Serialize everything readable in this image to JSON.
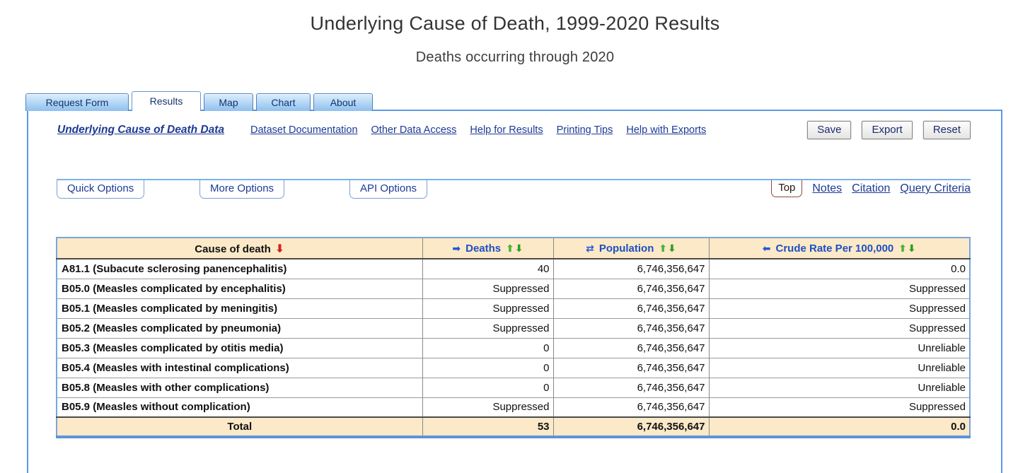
{
  "page": {
    "title": "Underlying Cause of Death, 1999-2020 Results",
    "subtitle": "Deaths occurring through 2020"
  },
  "tabs": [
    {
      "label": "Request Form",
      "active": false
    },
    {
      "label": "Results",
      "active": true
    },
    {
      "label": "Map",
      "active": false
    },
    {
      "label": "Chart",
      "active": false
    },
    {
      "label": "About",
      "active": false
    }
  ],
  "toolbar": {
    "dataset_link": "Underlying Cause of Death Data",
    "links": [
      "Dataset Documentation",
      "Other Data Access",
      "Help for Results",
      "Printing Tips",
      "Help with Exports"
    ],
    "buttons": {
      "save": "Save",
      "export": "Export",
      "reset": "Reset"
    }
  },
  "options": {
    "tabs": [
      "Quick Options",
      "More Options",
      "API Options"
    ],
    "top_button": "Top",
    "links": [
      "Notes",
      "Citation",
      "Query Criteria"
    ]
  },
  "icons": {
    "sort_desc_red": "⬇",
    "nav_right": "➡",
    "nav_swap": "⇄",
    "nav_left": "⬅",
    "sort_asc": "⬆",
    "sort_desc": "⬇"
  },
  "table": {
    "headers": {
      "cause": "Cause of death",
      "deaths": "Deaths",
      "population": "Population",
      "crude_rate": "Crude Rate Per 100,000"
    },
    "rows": [
      {
        "cause": "A81.1 (Subacute sclerosing panencephalitis)",
        "deaths": "40",
        "population": "6,746,356,647",
        "crude_rate": "0.0"
      },
      {
        "cause": "B05.0 (Measles complicated by encephalitis)",
        "deaths": "Suppressed",
        "population": "6,746,356,647",
        "crude_rate": "Suppressed"
      },
      {
        "cause": "B05.1 (Measles complicated by meningitis)",
        "deaths": "Suppressed",
        "population": "6,746,356,647",
        "crude_rate": "Suppressed"
      },
      {
        "cause": "B05.2 (Measles complicated by pneumonia)",
        "deaths": "Suppressed",
        "population": "6,746,356,647",
        "crude_rate": "Suppressed"
      },
      {
        "cause": "B05.3 (Measles complicated by otitis media)",
        "deaths": "0",
        "population": "6,746,356,647",
        "crude_rate": "Unreliable"
      },
      {
        "cause": "B05.4 (Measles with intestinal complications)",
        "deaths": "0",
        "population": "6,746,356,647",
        "crude_rate": "Unreliable"
      },
      {
        "cause": "B05.8 (Measles with other complications)",
        "deaths": "0",
        "population": "6,746,356,647",
        "crude_rate": "Unreliable"
      },
      {
        "cause": "B05.9 (Measles without complication)",
        "deaths": "Suppressed",
        "population": "6,746,356,647",
        "crude_rate": "Suppressed"
      }
    ],
    "total": {
      "label": "Total",
      "deaths": "53",
      "population": "6,746,356,647",
      "crude_rate": "0.0"
    }
  },
  "colors": {
    "panel_border": "#5b99e0",
    "table_border": "#79a7dc",
    "header_bg": "#fbe9c8",
    "link_navy": "#1c3a94",
    "header_blue": "#1e4fc2",
    "arrow_red": "#d42020",
    "arrow_blue": "#2458d8",
    "arrow_green": "#3aa428",
    "top_button_border": "#8b4a40"
  }
}
